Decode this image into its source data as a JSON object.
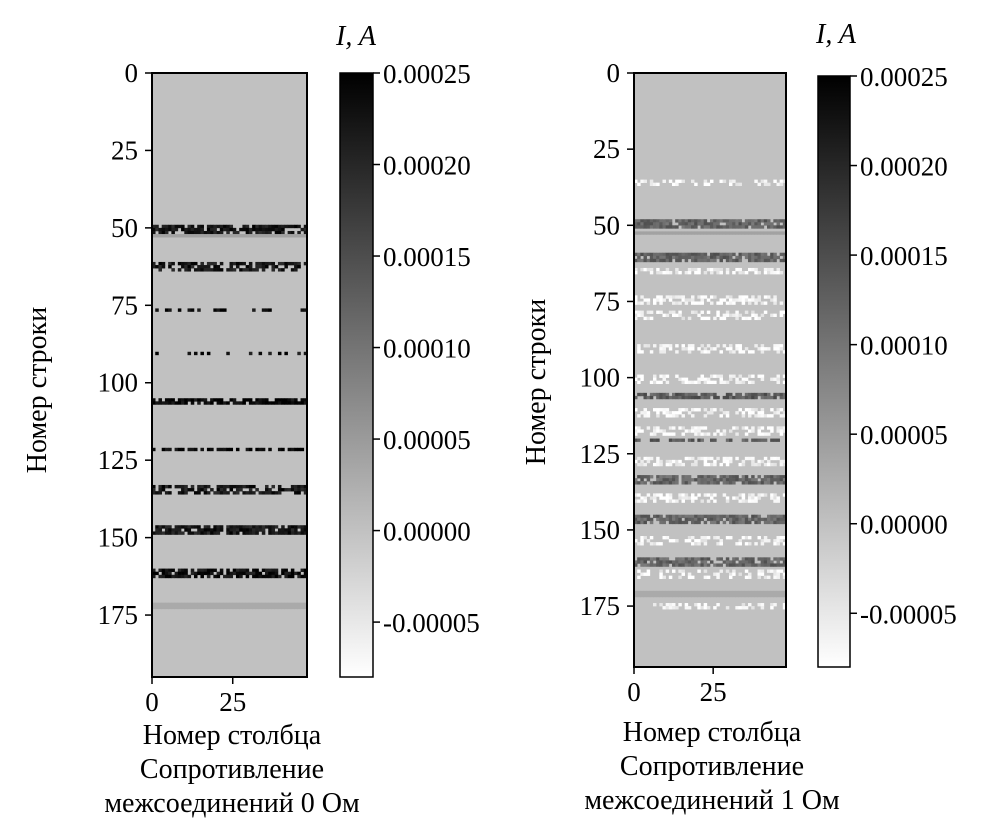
{
  "chart_data": [
    {
      "type": "heatmap",
      "ylabel": "Номер строки",
      "caption_lines": [
        "Номер столбца",
        "Сопротивление",
        "межсоединений 0 Ом"
      ],
      "colorbar_label": "I, A",
      "colorbar_ticks": [
        "0.00025",
        "0.00020",
        "0.00015",
        "0.00010",
        "0.00005",
        "0.00000",
        "-0.00005"
      ],
      "colorbar_tick_values": [
        0.00025,
        0.0002,
        0.00015,
        0.0001,
        5e-05,
        0.0,
        -5e-05
      ],
      "colorbar_range": [
        -8e-05,
        0.00025
      ],
      "colormap": "gray_r",
      "xticks": [
        "0",
        "25"
      ],
      "xtick_values": [
        0,
        25
      ],
      "yticks": [
        "0",
        "25",
        "50",
        "75",
        "100",
        "125",
        "150",
        "175"
      ],
      "ytick_values": [
        0,
        25,
        50,
        75,
        100,
        125,
        150,
        175
      ],
      "xlim": [
        0,
        48
      ],
      "ylim": [
        0,
        195
      ],
      "background_value": 0.0,
      "bands": [
        {
          "row": 49,
          "height": 3,
          "value": 0.00022,
          "density": 0.8
        },
        {
          "row": 52,
          "height": 1,
          "value": 4e-05,
          "density": 1.0
        },
        {
          "row": 61,
          "height": 3,
          "value": 0.00022,
          "density": 0.65
        },
        {
          "row": 76,
          "height": 1,
          "value": 0.00023,
          "density": 0.3
        },
        {
          "row": 90,
          "height": 1,
          "value": 0.00023,
          "density": 0.2
        },
        {
          "row": 105,
          "height": 2,
          "value": 0.00024,
          "density": 0.85
        },
        {
          "row": 121,
          "height": 1,
          "value": 0.00024,
          "density": 0.6
        },
        {
          "row": 133,
          "height": 3,
          "value": 0.00022,
          "density": 0.6
        },
        {
          "row": 146,
          "height": 3,
          "value": 0.00022,
          "density": 0.75
        },
        {
          "row": 160,
          "height": 3,
          "value": 0.00023,
          "density": 0.75
        },
        {
          "row": 171,
          "height": 2,
          "value": 3e-05,
          "density": 1.0
        }
      ],
      "bright_bands": []
    },
    {
      "type": "heatmap",
      "ylabel": "Номер строки",
      "caption_lines": [
        "Номер столбца",
        "Сопротивление",
        "межсоединений 1 Ом"
      ],
      "colorbar_label": "I, A",
      "colorbar_ticks": [
        "0.00025",
        "0.00020",
        "0.00015",
        "0.00010",
        "0.00005",
        "0.00000",
        "-0.00005"
      ],
      "colorbar_tick_values": [
        0.00025,
        0.0002,
        0.00015,
        0.0001,
        5e-05,
        0.0,
        -5e-05
      ],
      "colorbar_range": [
        -8e-05,
        0.00025
      ],
      "colormap": "gray_r",
      "xticks": [
        "0",
        "25"
      ],
      "xtick_values": [
        0,
        25
      ],
      "yticks": [
        "0",
        "25",
        "50",
        "75",
        "100",
        "125",
        "150",
        "175"
      ],
      "ytick_values": [
        0,
        25,
        50,
        75,
        100,
        125,
        150,
        175
      ],
      "xlim": [
        0,
        48
      ],
      "ylim": [
        0,
        195
      ],
      "background_value": 0.0,
      "bands": [
        {
          "row": 48,
          "height": 3,
          "value": 0.00012,
          "density": 0.9
        },
        {
          "row": 52,
          "height": 1,
          "value": 4e-05,
          "density": 1.0
        },
        {
          "row": 59,
          "height": 3,
          "value": 0.00012,
          "density": 0.85
        },
        {
          "row": 105,
          "height": 2,
          "value": 0.00013,
          "density": 0.8
        },
        {
          "row": 120,
          "height": 1,
          "value": 0.00013,
          "density": 0.6
        },
        {
          "row": 132,
          "height": 3,
          "value": 0.00012,
          "density": 0.8
        },
        {
          "row": 145,
          "height": 3,
          "value": 0.00012,
          "density": 0.85
        },
        {
          "row": 159,
          "height": 3,
          "value": 0.00012,
          "density": 0.85
        },
        {
          "row": 170,
          "height": 2,
          "value": 3e-05,
          "density": 1.0
        }
      ],
      "bright_bands": [
        {
          "row": 35,
          "height": 2,
          "value": -7e-05,
          "density": 0.35
        },
        {
          "row": 64,
          "height": 2,
          "value": -7e-05,
          "density": 0.5
        },
        {
          "row": 73,
          "height": 3,
          "value": -7e-05,
          "density": 0.5
        },
        {
          "row": 78,
          "height": 3,
          "value": -7e-05,
          "density": 0.5
        },
        {
          "row": 89,
          "height": 3,
          "value": -7e-05,
          "density": 0.5
        },
        {
          "row": 99,
          "height": 3,
          "value": -7e-05,
          "density": 0.5
        },
        {
          "row": 110,
          "height": 3,
          "value": -7e-05,
          "density": 0.5
        },
        {
          "row": 116,
          "height": 3,
          "value": -7e-05,
          "density": 0.5
        },
        {
          "row": 126,
          "height": 3,
          "value": -7e-05,
          "density": 0.5
        },
        {
          "row": 138,
          "height": 3,
          "value": -7e-05,
          "density": 0.5
        },
        {
          "row": 152,
          "height": 3,
          "value": -7e-05,
          "density": 0.45
        },
        {
          "row": 163,
          "height": 3,
          "value": -7e-05,
          "density": 0.45
        },
        {
          "row": 174,
          "height": 2,
          "value": -7e-05,
          "density": 0.3
        },
        {
          "row": 188,
          "height": 1,
          "value": -7e-05,
          "density": 0.05
        }
      ]
    }
  ]
}
